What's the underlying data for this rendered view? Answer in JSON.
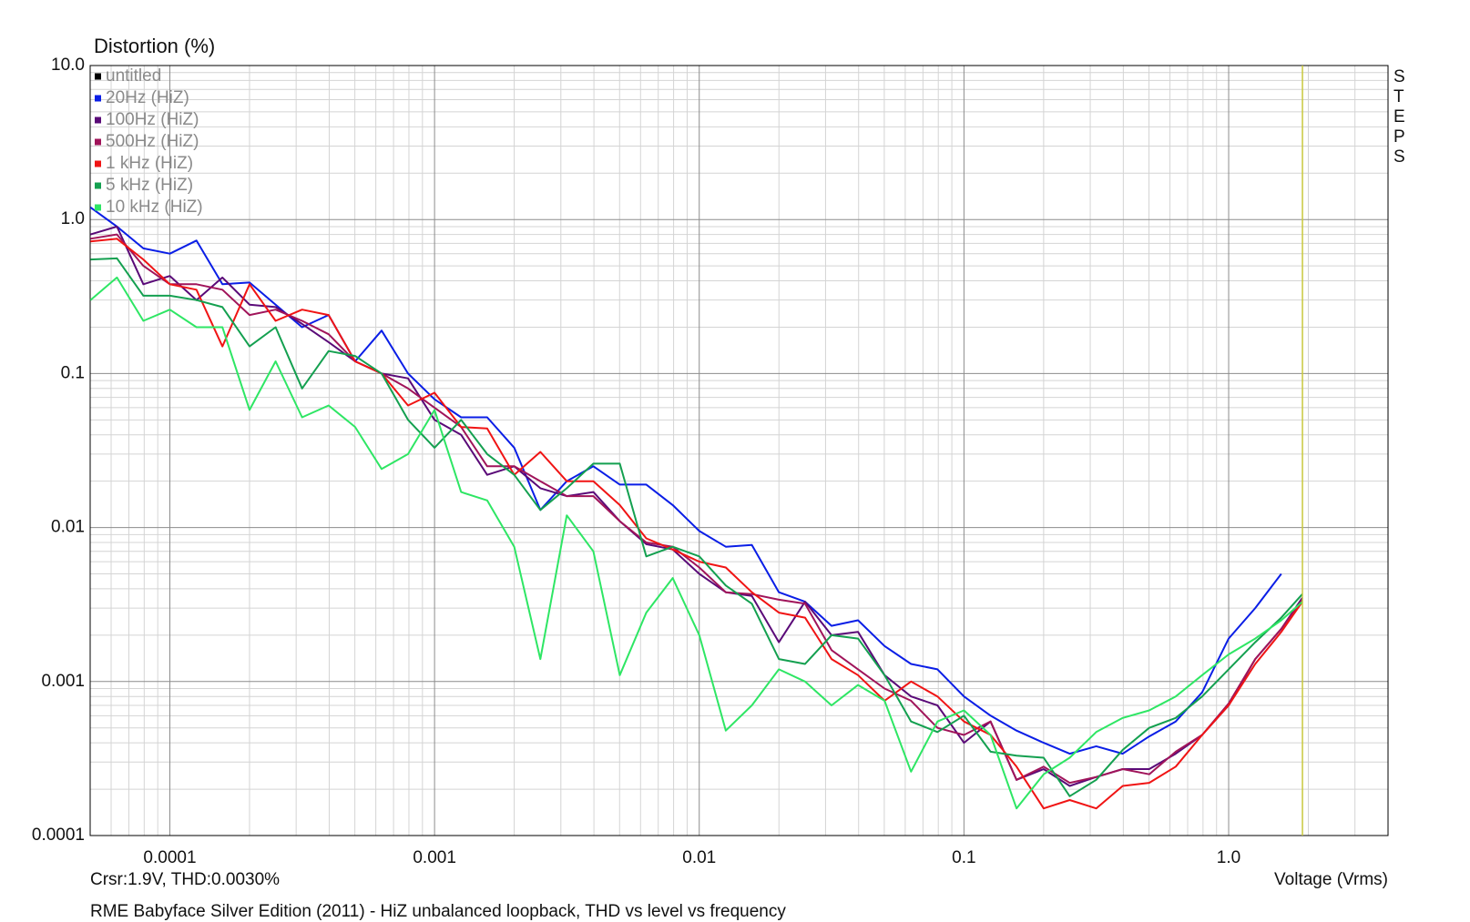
{
  "chart_data": {
    "type": "line",
    "title": "Distortion (%)",
    "xlabel": "Voltage (Vrms)",
    "cursor_text": "Crsr:1.9V, THD:0.0030%",
    "footer": "RME Babyface Silver Edition (2011) - HiZ unbalanced loopback, THD vs level vs frequency",
    "side_label": "STEPS",
    "xlog": true,
    "ylog": true,
    "grid": true,
    "minor_grid": true,
    "legend": "top-left",
    "cursor_x": 1.9,
    "xlim": [
      5e-05,
      4
    ],
    "ylim": [
      0.0001,
      10
    ],
    "xticks": [
      0.0001,
      0.001,
      0.01,
      0.1,
      {
        "value": 1,
        "label": "1.0"
      }
    ],
    "yticks": [
      {
        "value": 10,
        "label": "10.0"
      },
      {
        "value": 1,
        "label": "1.0"
      },
      0.1,
      0.01,
      0.001,
      0.0001
    ],
    "x": [
      5.01e-05,
      6.31e-05,
      7.94e-05,
      0.0001,
      0.000126,
      0.000158,
      0.0002,
      0.000251,
      0.000316,
      0.000398,
      0.000501,
      0.000631,
      0.000794,
      0.001,
      0.00126,
      0.00158,
      0.002,
      0.00251,
      0.00316,
      0.00398,
      0.00501,
      0.00631,
      0.00794,
      0.01,
      0.0126,
      0.0158,
      0.02,
      0.0251,
      0.0316,
      0.0398,
      0.0501,
      0.0631,
      0.0794,
      0.1,
      0.126,
      0.158,
      0.2,
      0.251,
      0.316,
      0.398,
      0.501,
      0.631,
      0.794,
      1,
      1.26,
      1.58,
      1.9
    ],
    "series": [
      {
        "name": "untitled",
        "color": "#000000",
        "values": [
          null,
          null,
          null,
          null,
          null,
          null,
          null,
          null,
          null,
          null,
          null,
          null,
          null,
          null,
          null,
          null,
          null,
          null,
          null,
          null,
          null,
          null,
          null,
          null,
          null,
          null,
          null,
          null,
          null,
          null,
          null,
          null,
          null,
          null,
          null,
          null,
          null,
          null,
          null,
          null,
          null,
          null,
          null,
          null,
          null,
          null,
          null
        ]
      },
      {
        "name": "20Hz (HiZ)",
        "color": "#0a1ee6",
        "values": [
          1.2,
          0.9,
          0.65,
          0.6,
          0.73,
          0.38,
          0.39,
          0.28,
          0.2,
          0.24,
          0.12,
          0.19,
          0.1,
          0.068,
          0.052,
          0.052,
          0.033,
          0.013,
          0.02,
          0.025,
          0.019,
          0.019,
          0.014,
          0.0095,
          0.0075,
          0.0077,
          0.0038,
          0.0033,
          0.0023,
          0.0025,
          0.0017,
          0.0013,
          0.0012,
          0.0008,
          0.0006,
          0.00048,
          0.0004,
          0.00034,
          0.00038,
          0.00034,
          0.00044,
          0.00055,
          0.00085,
          0.0019,
          0.003,
          0.005,
          null
        ]
      },
      {
        "name": "100Hz (HiZ)",
        "color": "#5a0a78",
        "values": [
          0.8,
          0.9,
          0.38,
          0.43,
          0.3,
          0.42,
          0.28,
          0.27,
          0.21,
          0.16,
          0.12,
          0.1,
          0.093,
          0.05,
          0.04,
          0.022,
          0.025,
          0.018,
          0.016,
          0.017,
          0.011,
          0.0078,
          0.0072,
          0.005,
          0.0038,
          0.0036,
          0.0018,
          0.0033,
          0.002,
          0.0021,
          0.0011,
          0.0008,
          0.0007,
          0.0004,
          0.00055,
          0.00023,
          0.00027,
          0.00021,
          0.00024,
          0.00027,
          0.00027,
          0.00034,
          0.00045,
          0.0007,
          0.0014,
          0.0022,
          0.0035
        ]
      },
      {
        "name": "500Hz (HiZ)",
        "color": "#a0145a",
        "values": [
          0.75,
          0.8,
          0.5,
          0.38,
          0.38,
          0.35,
          0.24,
          0.26,
          0.22,
          0.18,
          0.12,
          0.1,
          0.08,
          0.06,
          0.045,
          0.025,
          0.025,
          0.02,
          0.016,
          0.016,
          0.011,
          0.008,
          0.0075,
          0.0055,
          0.0038,
          0.0037,
          0.0034,
          0.0032,
          0.0016,
          0.0012,
          0.0009,
          0.00075,
          0.0005,
          0.00045,
          0.00055,
          0.00023,
          0.00028,
          0.00022,
          0.00024,
          0.00027,
          0.00025,
          0.00035,
          0.00045,
          0.00072,
          0.0014,
          0.0022,
          0.0034
        ]
      },
      {
        "name": "1 kHz (HiZ)",
        "color": "#f01414",
        "values": [
          0.72,
          0.75,
          0.55,
          0.38,
          0.35,
          0.15,
          0.38,
          0.22,
          0.26,
          0.24,
          0.12,
          0.1,
          0.062,
          0.075,
          0.045,
          0.044,
          0.022,
          0.031,
          0.02,
          0.02,
          0.014,
          0.0085,
          0.0072,
          0.006,
          0.0055,
          0.0038,
          0.0028,
          0.0026,
          0.0014,
          0.0011,
          0.00075,
          0.001,
          0.0008,
          0.00055,
          0.00045,
          0.00028,
          0.00015,
          0.00017,
          0.00015,
          0.00021,
          0.00022,
          0.00028,
          0.00045,
          0.0007,
          0.0013,
          0.0021,
          0.0033
        ]
      },
      {
        "name": "5 kHz (HiZ)",
        "color": "#14a050",
        "values": [
          0.55,
          0.56,
          0.32,
          0.32,
          0.3,
          0.27,
          0.15,
          0.2,
          0.08,
          0.14,
          0.13,
          0.1,
          0.05,
          0.033,
          0.05,
          0.03,
          0.022,
          0.013,
          0.018,
          0.026,
          0.026,
          0.0065,
          0.0075,
          0.0065,
          0.0042,
          0.0032,
          0.0014,
          0.0013,
          0.002,
          0.0019,
          0.0011,
          0.00055,
          0.00047,
          0.0006,
          0.00035,
          0.00033,
          0.00032,
          0.00018,
          0.00023,
          0.00036,
          0.0005,
          0.00058,
          0.0008,
          0.0012,
          0.0018,
          0.0026,
          0.0037
        ]
      },
      {
        "name": "10 kHz (HiZ)",
        "color": "#2ee664",
        "values": [
          0.3,
          0.42,
          0.22,
          0.26,
          0.2,
          0.2,
          0.058,
          0.12,
          0.052,
          0.062,
          0.045,
          0.024,
          0.03,
          0.058,
          0.017,
          0.015,
          0.0075,
          0.0014,
          0.012,
          0.007,
          0.0011,
          0.0028,
          0.0047,
          0.002,
          0.00048,
          0.0007,
          0.0012,
          0.001,
          0.0007,
          0.00095,
          0.00075,
          0.00026,
          0.00055,
          0.00065,
          0.00045,
          0.00015,
          0.00025,
          0.00032,
          0.00047,
          0.00058,
          0.00065,
          0.0008,
          0.0011,
          0.0015,
          0.0019,
          0.0025,
          0.0033
        ]
      }
    ]
  }
}
